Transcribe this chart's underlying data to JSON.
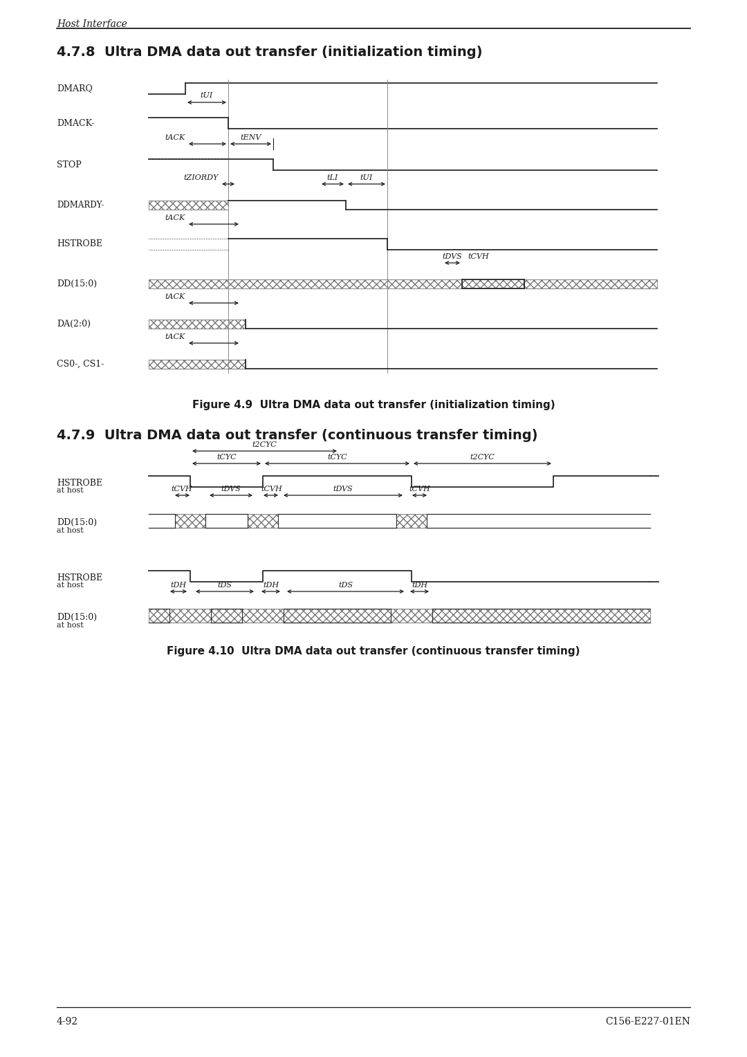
{
  "page_title": "Host Interface",
  "section1_title": "4.7.8  Ultra DMA data out transfer (initialization timing)",
  "section2_title": "4.7.9  Ultra DMA data out transfer (continuous transfer timing)",
  "fig1_caption": "Figure 4.9  Ultra DMA data out transfer (initialization timing)",
  "fig2_caption": "Figure 4.10  Ultra DMA data out transfer (continuous transfer timing)",
  "footer_left": "4-92",
  "footer_right": "C156-E227-01EN",
  "bg_color": "#ffffff",
  "line_color": "#1a1a1a",
  "signal_color": "#2a2a2a",
  "hatch_color": "#777777"
}
